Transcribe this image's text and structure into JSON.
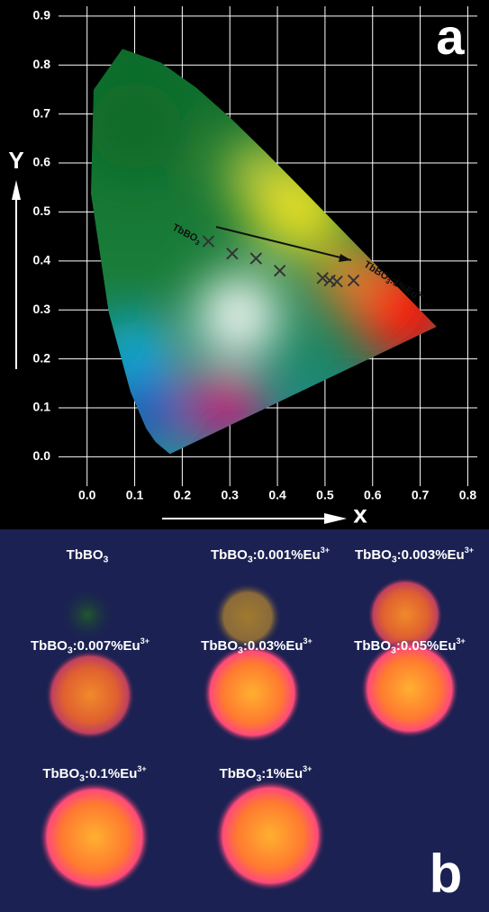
{
  "chart_data": {
    "type": "scatter",
    "panel": "a",
    "x_label": "x",
    "y_label": "Y",
    "x": [
      0.255,
      0.305,
      0.355,
      0.405,
      0.495,
      0.51,
      0.525,
      0.56
    ],
    "y": [
      0.44,
      0.415,
      0.405,
      0.38,
      0.365,
      0.36,
      0.358,
      0.36
    ],
    "xlim": [
      -0.06,
      0.82
    ],
    "ylim": [
      -0.06,
      0.92
    ],
    "xticks": [
      {
        "value": 0,
        "label": "0.0"
      },
      0.1,
      0.2,
      0.3,
      0.4,
      0.5,
      0.6,
      0.7,
      0.8
    ],
    "yticks": [
      {
        "value": 0,
        "label": "0.0"
      },
      0.1,
      0.2,
      0.3,
      0.4,
      0.5,
      0.6,
      0.7,
      0.8,
      0.9
    ],
    "grid": true,
    "annotations": [
      {
        "main": "TbBO",
        "sub": "3"
      },
      {
        "main": "TbBO",
        "sub": "3",
        "rest": ":1%Eu",
        "sup": "3+"
      }
    ]
  },
  "panel_b": {
    "label": "b",
    "samples": [
      {
        "main": "TbBO",
        "sub": "3"
      },
      {
        "main": "TbBO",
        "sub": "3",
        "rest": ":0.001%Eu",
        "sup": "3+"
      },
      {
        "main": "TbBO",
        "sub": "3",
        "rest": ":0.003%Eu",
        "sup": "3+"
      },
      {
        "main": "TbBO",
        "sub": "3",
        "rest": ":0.007%Eu",
        "sup": "3+"
      },
      {
        "main": "TbBO",
        "sub": "3",
        "rest": ":0.03%Eu",
        "sup": "3+"
      },
      {
        "main": "TbBO",
        "sub": "3",
        "rest": ":0.05%Eu",
        "sup": "3+"
      },
      {
        "main": "TbBO",
        "sub": "3",
        "rest": ":0.1%Eu",
        "sup": "3+"
      },
      {
        "main": "TbBO",
        "sub": "3",
        "rest": ":1%Eu",
        "sup": "3+"
      }
    ]
  }
}
